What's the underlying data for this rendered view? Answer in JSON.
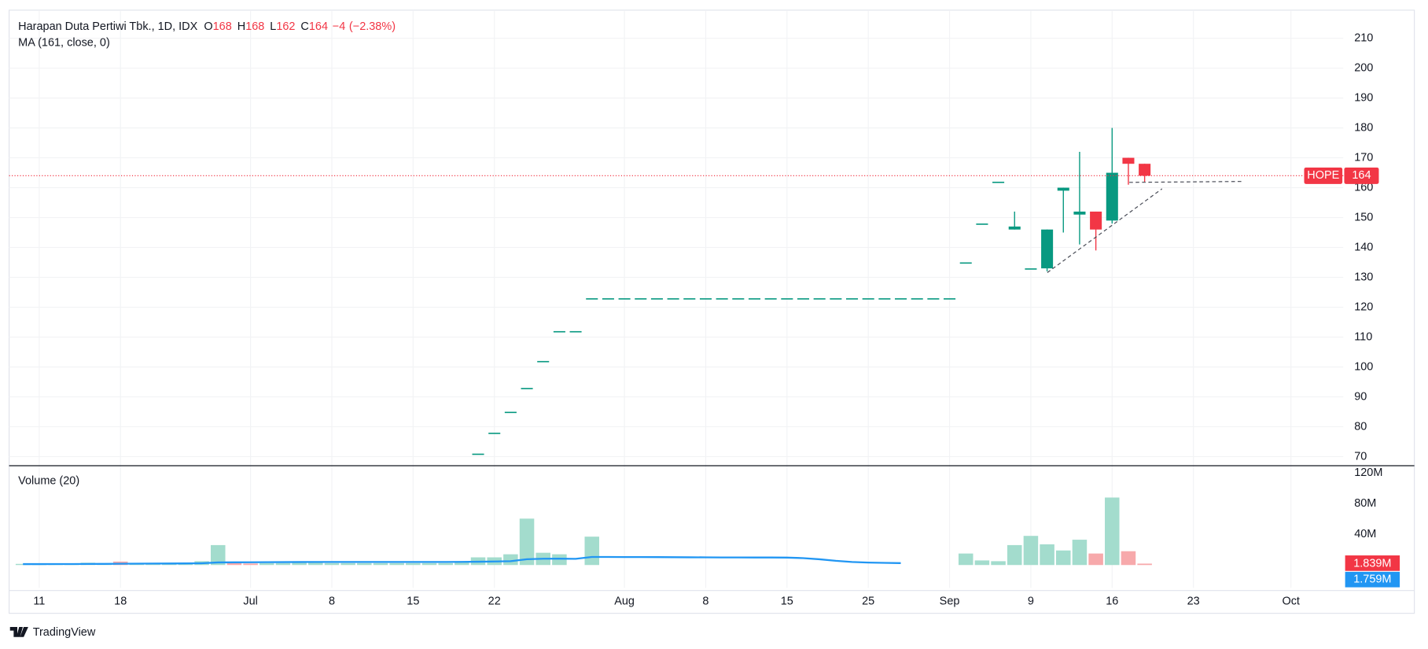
{
  "chart_data": {
    "type": "candlestick",
    "title": "Harapan Duta Pertiwi Tbk., 1D, IDX",
    "header_labels": [
      "O",
      "H",
      "L",
      "C"
    ],
    "change": {
      "value": -4,
      "label": "−4"
    },
    "change_pct": {
      "value": -2.38,
      "label": "(−2.38%)"
    },
    "indicator": "MA (161, close, 0)",
    "symbol": "HOPE",
    "up_color": "#089981",
    "down_color": "#f23645",
    "categories": [
      null,
      "11",
      null,
      null,
      null,
      null,
      "18",
      null,
      null,
      null,
      null,
      null,
      null,
      null,
      "Jul",
      null,
      null,
      null,
      null,
      "8",
      null,
      null,
      null,
      null,
      "15",
      null,
      null,
      null,
      null,
      "22",
      null,
      null,
      null,
      null,
      null,
      null,
      null,
      "Aug",
      null,
      null,
      null,
      null,
      "8",
      null,
      null,
      null,
      null,
      "15",
      null,
      null,
      null,
      null,
      "25",
      null,
      null,
      null,
      null,
      "Sep",
      null,
      null,
      null,
      null,
      "9",
      null,
      null,
      null,
      null,
      "16",
      null,
      null,
      null,
      null,
      "23",
      null,
      null,
      null,
      null,
      null,
      "Oct",
      null,
      null
    ],
    "open": [
      null,
      null,
      null,
      null,
      null,
      null,
      null,
      null,
      null,
      null,
      null,
      null,
      null,
      null,
      null,
      null,
      null,
      null,
      null,
      null,
      null,
      null,
      null,
      null,
      null,
      null,
      null,
      null,
      71,
      78,
      85,
      93,
      102,
      112,
      112,
      123,
      123,
      123,
      123,
      123,
      123,
      123,
      123,
      123,
      123,
      123,
      123,
      123,
      123,
      123,
      123,
      123,
      123,
      123,
      123,
      123,
      123,
      123,
      135,
      148,
      162,
      146,
      133,
      133,
      159,
      151,
      152,
      149,
      170,
      168,
      null,
      null,
      null,
      null,
      null,
      null,
      null,
      null,
      null,
      null,
      null
    ],
    "high": [
      null,
      null,
      null,
      null,
      null,
      null,
      null,
      null,
      null,
      null,
      null,
      null,
      null,
      null,
      null,
      null,
      null,
      null,
      null,
      null,
      null,
      null,
      null,
      null,
      null,
      null,
      null,
      null,
      71,
      78,
      85,
      93,
      102,
      112,
      112,
      123,
      123,
      123,
      123,
      123,
      123,
      123,
      123,
      123,
      123,
      123,
      123,
      123,
      123,
      123,
      123,
      123,
      123,
      123,
      123,
      123,
      123,
      123,
      135,
      148,
      162,
      152,
      133,
      146,
      160,
      172,
      152,
      180,
      170,
      168,
      null,
      null,
      null,
      null,
      null,
      null,
      null,
      null,
      null,
      null,
      null
    ],
    "low": [
      null,
      null,
      null,
      null,
      null,
      null,
      null,
      null,
      null,
      null,
      null,
      null,
      null,
      null,
      null,
      null,
      null,
      null,
      null,
      null,
      null,
      null,
      null,
      null,
      null,
      null,
      null,
      null,
      71,
      78,
      85,
      93,
      102,
      112,
      112,
      123,
      123,
      123,
      123,
      123,
      123,
      123,
      123,
      123,
      123,
      123,
      123,
      123,
      123,
      123,
      123,
      123,
      123,
      123,
      123,
      123,
      123,
      123,
      135,
      148,
      162,
      146,
      133,
      132,
      145,
      141,
      139,
      148,
      161,
      162,
      null,
      null,
      null,
      null,
      null,
      null,
      null,
      null,
      null,
      null,
      null
    ],
    "close": [
      null,
      null,
      null,
      null,
      null,
      null,
      null,
      null,
      null,
      null,
      null,
      null,
      null,
      null,
      null,
      null,
      null,
      null,
      null,
      null,
      null,
      null,
      null,
      null,
      null,
      null,
      null,
      null,
      71,
      78,
      85,
      93,
      102,
      112,
      112,
      123,
      123,
      123,
      123,
      123,
      123,
      123,
      123,
      123,
      123,
      123,
      123,
      123,
      123,
      123,
      123,
      123,
      123,
      123,
      123,
      123,
      123,
      123,
      135,
      148,
      162,
      147,
      133,
      146,
      160,
      152,
      146,
      165,
      168,
      164,
      null,
      null,
      null,
      null,
      null,
      null,
      null,
      null,
      null,
      null,
      null
    ],
    "ylim": [
      67.26,
      219.1
    ],
    "yticks": [
      70,
      80,
      90,
      100,
      110,
      120,
      130,
      140,
      150,
      160,
      170,
      180,
      190,
      200,
      210
    ],
    "grid": true,
    "volume": {
      "title": "Volume (20)",
      "values": [
        1500000,
        1200000,
        1000000,
        1200000,
        3000000,
        2000000,
        4500000,
        2000000,
        2000000,
        2000000,
        2500000,
        5000000,
        26000000,
        3000000,
        2000000,
        2500000,
        2500000,
        3500000,
        3000000,
        2500000,
        2500000,
        2500000,
        2500000,
        2500000,
        2500000,
        2500000,
        2500000,
        4000000,
        10000000,
        10000000,
        14000000,
        60500000,
        16000000,
        14000000,
        0,
        37000000,
        0,
        0,
        0,
        0,
        0,
        0,
        0,
        0,
        0,
        0,
        0,
        0,
        0,
        0,
        0,
        0,
        0,
        0,
        0,
        0,
        0,
        0,
        15000000,
        6000000,
        5000000,
        26000000,
        38000000,
        27000000,
        19000000,
        33000000,
        15000000,
        88000000,
        18000000,
        1839000,
        null,
        null,
        null,
        null,
        null,
        null,
        null,
        null,
        null,
        null,
        null
      ],
      "colors": [
        "#a3dccd",
        "#a3dccd",
        "#a3dccd",
        "#a3dccd",
        "#a3dccd",
        "#a3dccd",
        "#f7a9ab",
        "#a3dccd",
        "#a3dccd",
        "#a3dccd",
        "#a3dccd",
        "#a3dccd",
        "#a3dccd",
        "#f7a9ab",
        "#f7a9ab",
        "#a3dccd",
        "#a3dccd",
        "#a3dccd",
        "#a3dccd",
        "#a3dccd",
        "#a3dccd",
        "#a3dccd",
        "#a3dccd",
        "#a3dccd",
        "#a3dccd",
        "#a3dccd",
        "#a3dccd",
        "#a3dccd",
        "#a3dccd",
        "#a3dccd",
        "#a3dccd",
        "#a3dccd",
        "#a3dccd",
        "#a3dccd",
        "#a3dccd",
        "#a3dccd",
        "#a3dccd",
        "#a3dccd",
        "#a3dccd",
        "#a3dccd",
        "#a3dccd",
        "#a3dccd",
        "#a3dccd",
        "#a3dccd",
        "#a3dccd",
        "#a3dccd",
        "#a3dccd",
        "#a3dccd",
        "#a3dccd",
        "#a3dccd",
        "#a3dccd",
        "#a3dccd",
        "#a3dccd",
        "#a3dccd",
        "#a3dccd",
        "#a3dccd",
        "#a3dccd",
        "#a3dccd",
        "#a3dccd",
        "#a3dccd",
        "#a3dccd",
        "#a3dccd",
        "#a3dccd",
        "#a3dccd",
        "#a3dccd",
        "#a3dccd",
        "#f7a9ab",
        "#a3dccd",
        "#f7a9ab",
        "#f7a9ab",
        null,
        null,
        null,
        null,
        null,
        null,
        null,
        null,
        null,
        null,
        null
      ],
      "last_label": "1.839M",
      "last_color": "#f23645",
      "ylim": [
        0,
        128300000
      ],
      "yticks": [
        {
          "value": 40000000,
          "label": "40M"
        },
        {
          "value": 80000000,
          "label": "80M"
        },
        {
          "value": 120000000,
          "label": "120M"
        }
      ],
      "ma": {
        "color": "#2196f3",
        "values": [
          1200000,
          1200000,
          1300000,
          1300000,
          1400000,
          1500000,
          1700000,
          1800000,
          1900000,
          2000000,
          2100000,
          2300000,
          3400000,
          3500000,
          3600000,
          3700000,
          3800000,
          3900000,
          4000000,
          4000000,
          4000000,
          4000000,
          4000000,
          4000000,
          4000000,
          4000000,
          4000000,
          4100000,
          4300000,
          4600000,
          5000000,
          7600000,
          8200000,
          8300000,
          8100000,
          10500000,
          10500000,
          10400000,
          10400000,
          10300000,
          10200000,
          10100000,
          10000000,
          9900000,
          9900000,
          9800000,
          9800000,
          9700000,
          9000000,
          7500000,
          5500000,
          4000000,
          3200000,
          2800000,
          2500000,
          null,
          null,
          null,
          null,
          null,
          null,
          null,
          null,
          null,
          null,
          null,
          null,
          null,
          null,
          null,
          null,
          null,
          null,
          null,
          null,
          null,
          null,
          null,
          null,
          null,
          null
        ],
        "last": {
          "value": 1759000,
          "label": "1.759M"
        }
      }
    },
    "footer": "TradingView"
  }
}
